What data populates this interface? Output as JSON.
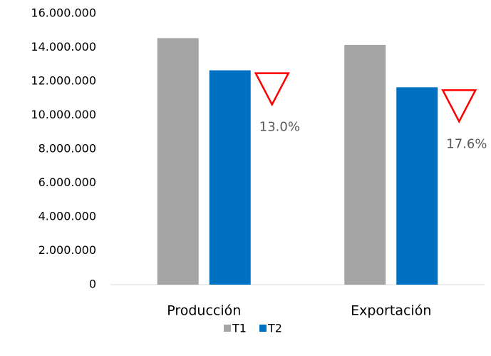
{
  "chart_data": {
    "type": "bar",
    "categories": [
      "Producción",
      "Exportación"
    ],
    "series": [
      {
        "name": "T1",
        "color": "#a5a5a5",
        "values": [
          14550000,
          14150000
        ]
      },
      {
        "name": "T2",
        "color": "#0070c0",
        "values": [
          12650000,
          11650000
        ]
      }
    ],
    "annotations": [
      "13.0%",
      "17.6%"
    ],
    "ylim": [
      0,
      16000000
    ],
    "yticks": [
      0,
      {
        "value": 2000000,
        "label": "2.000.000"
      },
      {
        "value": 4000000,
        "label": "4.000.000"
      },
      {
        "value": 6000000,
        "label": "6.000.000"
      },
      {
        "value": 8000000,
        "label": "8.000.000"
      },
      {
        "value": 10000000,
        "label": "10.000.000"
      },
      {
        "value": 12000000,
        "label": "12.000.000"
      },
      {
        "value": 14000000,
        "label": "14.000.000"
      },
      {
        "value": 16000000,
        "label": "16.000.000"
      }
    ],
    "grid": false,
    "legend": "bottom"
  }
}
